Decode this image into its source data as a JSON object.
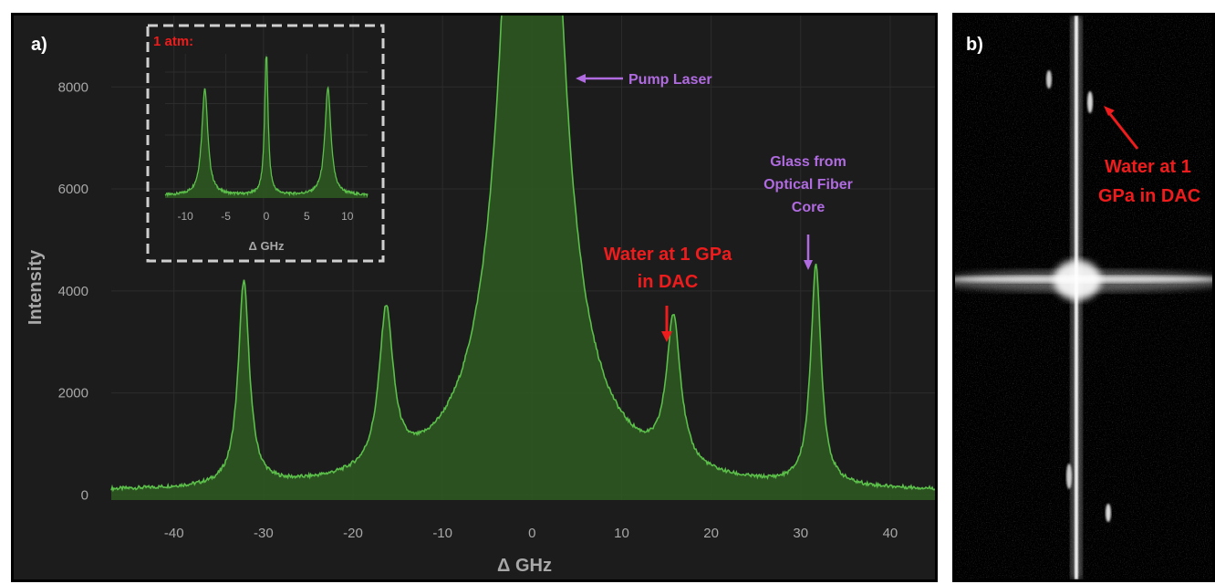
{
  "panel_a": {
    "label": "a)",
    "annotations": {
      "pump": "Pump Laser",
      "water_line1": "Water at 1 GPa",
      "water_line2": "in DAC",
      "glass_line1": "Glass from",
      "glass_line2": "Optical Fiber",
      "glass_line3": "Core"
    },
    "inset": {
      "title": "1 atm:",
      "xlabel": "Δ GHz",
      "xticks": [
        -10,
        -5,
        0,
        5,
        10
      ]
    }
  },
  "panel_b": {
    "label": "b)",
    "annotation_line1": "Water at 1",
    "annotation_line2": "GPa in DAC"
  },
  "colors": {
    "line": "#5bbf4a",
    "fill": "#2e5a22",
    "background": "#1c1c1c",
    "grid": "#2c2c2c",
    "annotation_red": "#ee1c1c",
    "annotation_purple": "#b06be0",
    "axis_text": "#a8a8a8"
  },
  "chart_data": [
    {
      "type": "area",
      "xlabel": "Δ GHz",
      "ylabel": "Intensity",
      "xlim": [
        -47,
        45
      ],
      "ylim": [
        -100,
        9400
      ],
      "xticks": [
        -40,
        -30,
        -20,
        -10,
        0,
        10,
        20,
        30,
        40
      ],
      "yticks": [
        0,
        2000,
        4000,
        6000,
        8000
      ],
      "grid": true,
      "peaks": [
        {
          "x": -32.2,
          "y": 4000,
          "width": 0.75
        },
        {
          "x": -16.3,
          "y": 3100,
          "width": 0.95
        },
        {
          "x": 0.0,
          "y": 30000,
          "width": 2.3
        },
        {
          "x": 15.8,
          "y": 2880,
          "width": 0.95
        },
        {
          "x": 31.7,
          "y": 4300,
          "width": 0.7
        }
      ],
      "baseline": 40
    },
    {
      "type": "area",
      "title": "1 atm:",
      "xlabel": "Δ GHz",
      "xlim": [
        -12.5,
        12.5
      ],
      "xticks": [
        -10,
        -5,
        0,
        5,
        10
      ],
      "peaks": [
        {
          "x": -7.6,
          "y": 0.85,
          "width": 0.45
        },
        {
          "x": 0.0,
          "y": 1.15,
          "width": 0.25
        },
        {
          "x": 7.6,
          "y": 0.85,
          "width": 0.45
        }
      ]
    }
  ]
}
